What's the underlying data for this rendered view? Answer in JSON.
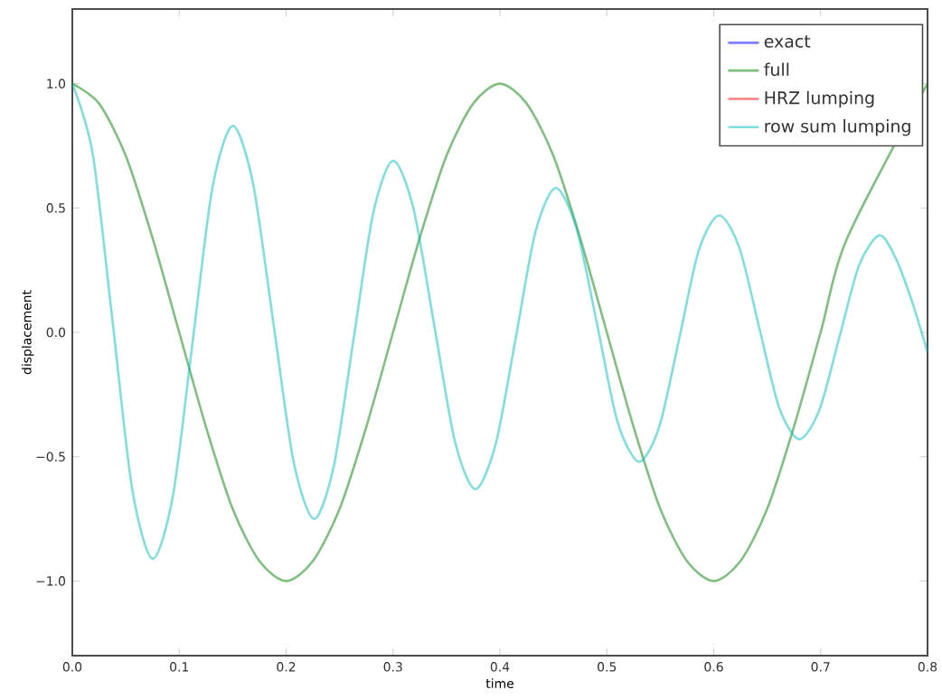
{
  "chart_data": {
    "type": "line",
    "xlabel": "time",
    "ylabel": "displacement",
    "xlim": [
      0,
      0.8
    ],
    "ylim": [
      -1.3,
      1.3
    ],
    "xticks": [
      {
        "value": 0,
        "label": "0.0"
      },
      0.1,
      0.2,
      0.3,
      0.4,
      0.5,
      0.6,
      0.7,
      0.8
    ],
    "yticks": [
      {
        "value": -1,
        "label": "−1.0"
      },
      {
        "value": -0.5,
        "label": "−0.5"
      },
      {
        "value": 0,
        "label": "0.0"
      },
      0.5,
      {
        "value": 1,
        "label": "1.0"
      }
    ],
    "legend": "top right",
    "grid": false,
    "marker": "none",
    "line_style": "solid",
    "x": [
      0,
      0.025,
      0.05,
      0.075,
      0.1,
      0.125,
      0.15,
      0.175,
      0.2,
      0.225,
      0.25,
      0.275,
      0.3,
      0.325,
      0.35,
      0.375,
      0.4,
      0.425,
      0.45,
      0.475,
      0.5,
      0.525,
      0.55,
      0.575,
      0.6,
      0.625,
      0.65,
      0.675,
      0.7,
      0.725,
      0.75,
      0.775,
      0.8
    ],
    "series": [
      {
        "name": "exact",
        "color": "#0000ff",
        "values": [
          null,
          null,
          null,
          null,
          null,
          null,
          null,
          null,
          null,
          null,
          null,
          null,
          null,
          null,
          null,
          null,
          null,
          null,
          null,
          null,
          null,
          null,
          null,
          null,
          null,
          null,
          null,
          null,
          null,
          null,
          null,
          null,
          null
        ]
      },
      {
        "name": "full",
        "color": "#008000",
        "values": [
          1,
          0.92,
          0.71,
          0.38,
          0,
          -0.38,
          -0.71,
          -0.92,
          -1,
          -0.92,
          -0.71,
          -0.38,
          0,
          0.38,
          0.71,
          0.92,
          1,
          0.92,
          0.71,
          0.38,
          0,
          -0.38,
          -0.71,
          -0.92,
          -1,
          -0.92,
          -0.71,
          -0.38,
          0,
          0.38,
          null,
          null,
          1
        ]
      },
      {
        "name": "HRZ lumping",
        "color": "#ff0000",
        "values": [
          null,
          null,
          null,
          null,
          null,
          null,
          null,
          null,
          null,
          null,
          null,
          null,
          null,
          null,
          null,
          null,
          null,
          null,
          null,
          null,
          null,
          null,
          null,
          null,
          null,
          null,
          null,
          null,
          null,
          null,
          null,
          null,
          null
        ]
      },
      {
        "name": "row sum lumping",
        "color": "#00bfbf",
        "x": [
          0,
          0.019,
          0.0375,
          0.056,
          0.075,
          0.094,
          0.1125,
          0.131,
          0.15,
          0.169,
          0.188,
          0.207,
          0.226,
          0.2445,
          0.263,
          0.2815,
          0.3,
          0.319,
          0.3385,
          0.358,
          0.377,
          0.396,
          0.4145,
          0.433,
          0.452,
          0.4715,
          0.491,
          0.51,
          0.53,
          0.549,
          0.5675,
          0.586,
          0.605,
          0.624,
          0.6425,
          0.661,
          0.68,
          0.699,
          0.7175,
          0.736,
          0.755,
          0.77,
          0.785,
          0.8
        ],
        "values": [
          1,
          0.72,
          0.05,
          -0.63,
          -0.91,
          -0.66,
          -0.04,
          0.58,
          0.83,
          0.6,
          0.04,
          -0.52,
          -0.75,
          -0.54,
          -0.03,
          0.48,
          0.69,
          0.5,
          0.03,
          -0.44,
          -0.63,
          -0.45,
          -0.03,
          0.4,
          0.58,
          0.42,
          0.03,
          -0.36,
          -0.52,
          -0.38,
          -0.03,
          0.33,
          0.47,
          0.34,
          0.02,
          -0.3,
          -0.43,
          -0.31,
          -0.02,
          0.27,
          0.39,
          0.3,
          0.13,
          -0.08
        ]
      }
    ]
  }
}
